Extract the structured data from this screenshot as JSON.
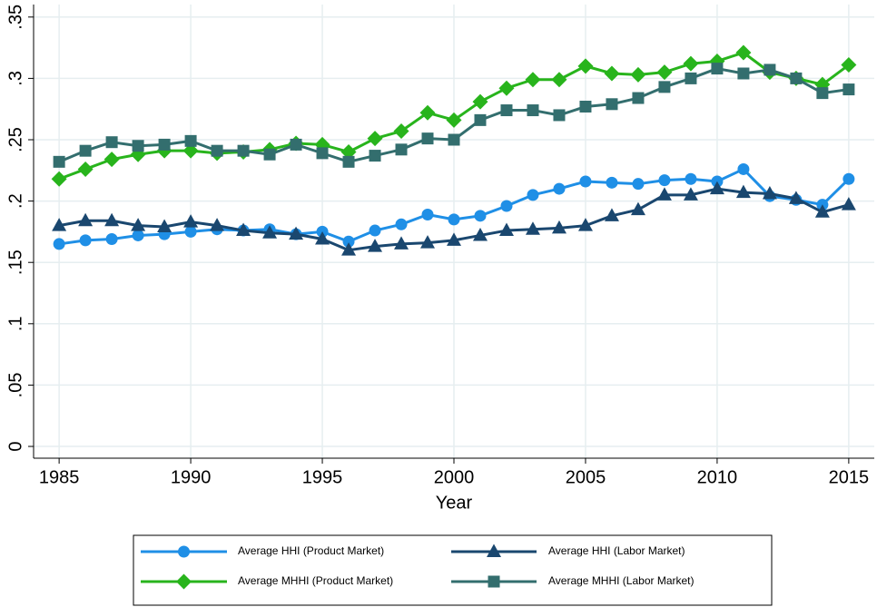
{
  "chart_data": {
    "type": "line",
    "x_label": "Year",
    "x": [
      1985,
      1986,
      1987,
      1988,
      1989,
      1990,
      1991,
      1992,
      1993,
      1994,
      1995,
      1996,
      1997,
      1998,
      1999,
      2000,
      2001,
      2002,
      2003,
      2004,
      2005,
      2006,
      2007,
      2008,
      2009,
      2010,
      2011,
      2012,
      2013,
      2014,
      2015
    ],
    "series": [
      {
        "name": "Average HHI (Product Market)",
        "color": "#1f8fe6",
        "marker": "circle",
        "values": [
          0.165,
          0.168,
          0.169,
          0.172,
          0.173,
          0.175,
          0.177,
          0.176,
          0.177,
          0.173,
          0.175,
          0.167,
          0.176,
          0.181,
          0.189,
          0.185,
          0.188,
          0.196,
          0.205,
          0.21,
          0.216,
          0.215,
          0.214,
          0.217,
          0.218,
          0.216,
          0.226,
          0.204,
          0.201,
          0.197,
          0.218
        ]
      },
      {
        "name": "Average HHI (Labor Market)",
        "color": "#1a476f",
        "marker": "triangle",
        "values": [
          0.18,
          0.184,
          0.184,
          0.18,
          0.179,
          0.183,
          0.18,
          0.176,
          0.174,
          0.173,
          0.169,
          0.16,
          0.163,
          0.165,
          0.166,
          0.168,
          0.172,
          0.176,
          0.177,
          0.178,
          0.18,
          0.188,
          0.193,
          0.205,
          0.205,
          0.21,
          0.207,
          0.206,
          0.202,
          0.191,
          0.197
        ]
      },
      {
        "name": "Average MHHI (Product Market)",
        "color": "#28b41c",
        "marker": "diamond",
        "values": [
          0.218,
          0.226,
          0.234,
          0.238,
          0.241,
          0.241,
          0.239,
          0.24,
          0.242,
          0.247,
          0.246,
          0.24,
          0.251,
          0.257,
          0.272,
          0.266,
          0.281,
          0.292,
          0.299,
          0.299,
          0.31,
          0.304,
          0.303,
          0.305,
          0.312,
          0.314,
          0.321,
          0.305,
          0.3,
          0.295,
          0.311
        ]
      },
      {
        "name": "Average MHHI (Labor Market)",
        "color": "#336e6e",
        "marker": "square",
        "values": [
          0.232,
          0.241,
          0.248,
          0.245,
          0.246,
          0.249,
          0.241,
          0.241,
          0.238,
          0.246,
          0.239,
          0.232,
          0.237,
          0.242,
          0.251,
          0.25,
          0.266,
          0.274,
          0.274,
          0.27,
          0.277,
          0.279,
          0.284,
          0.293,
          0.3,
          0.308,
          0.304,
          0.307,
          0.3,
          0.288,
          0.291
        ]
      }
    ],
    "xlim": [
      1984.03,
      2015.97
    ],
    "ylim": [
      -0.0096,
      0.3602
    ],
    "xticks": [
      1985,
      1990,
      1995,
      2000,
      2005,
      2010,
      2015
    ],
    "yticks": [
      0,
      {
        "value": 0.05,
        "label": ".05"
      },
      {
        "value": 0.1,
        "label": ".1"
      },
      {
        "value": 0.15,
        "label": ".15"
      },
      {
        "value": 0.2,
        "label": ".2"
      },
      {
        "value": 0.25,
        "label": ".25"
      },
      {
        "value": 0.3,
        "label": ".3"
      },
      {
        "value": 0.35,
        "label": ".35"
      }
    ],
    "grid": true,
    "legend": "bottom"
  }
}
